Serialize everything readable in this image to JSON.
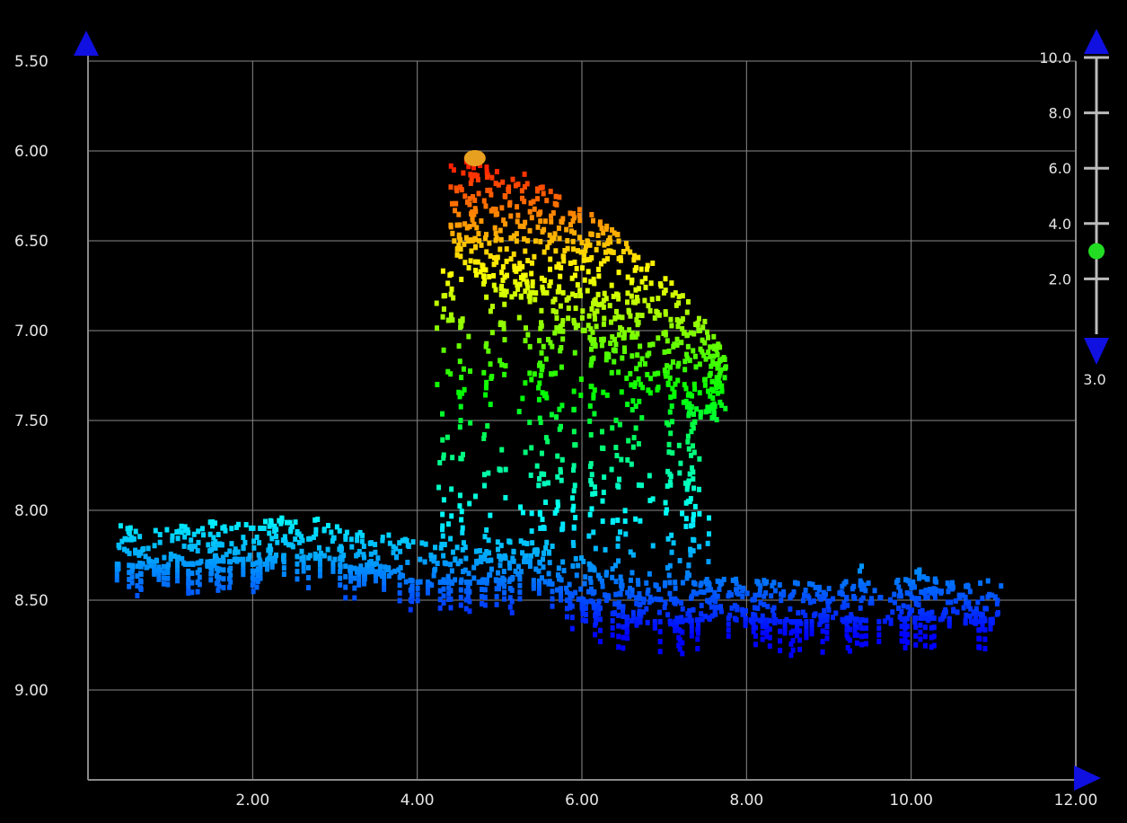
{
  "chart_data": {
    "type": "scatter",
    "title": "",
    "xlabel": "",
    "ylabel": "",
    "xlim": [
      0,
      12
    ],
    "ylim": [
      5.5,
      9.5
    ],
    "y_inverted": true,
    "grid": true,
    "x_ticks": [
      "2.00",
      "4.00",
      "6.00",
      "8.00",
      "10.00",
      "12.00"
    ],
    "y_ticks": [
      "5.50",
      "6.00",
      "6.50",
      "7.00",
      "7.50",
      "8.00",
      "8.50",
      "9.00"
    ],
    "colormap": "rainbow (red = shallow/high, blue = deep/low)",
    "series": [
      {
        "description": "seabed profile",
        "points": [
          [
            0.35,
            8.2
          ],
          [
            0.8,
            8.22
          ],
          [
            1.2,
            8.2
          ],
          [
            1.6,
            8.18
          ],
          [
            2.0,
            8.2
          ],
          [
            2.4,
            8.15
          ],
          [
            2.8,
            8.17
          ],
          [
            3.2,
            8.22
          ],
          [
            3.6,
            8.25
          ],
          [
            4.0,
            8.3
          ],
          [
            4.4,
            8.3
          ],
          [
            4.8,
            8.3
          ],
          [
            5.2,
            8.28
          ],
          [
            5.6,
            8.3
          ],
          [
            6.0,
            8.4
          ],
          [
            6.4,
            8.48
          ],
          [
            6.8,
            8.52
          ],
          [
            7.2,
            8.52
          ],
          [
            7.6,
            8.5
          ],
          [
            8.0,
            8.5
          ],
          [
            8.4,
            8.52
          ],
          [
            8.8,
            8.52
          ],
          [
            9.2,
            8.5
          ],
          [
            9.6,
            8.52
          ],
          [
            10.0,
            8.5
          ],
          [
            10.4,
            8.5
          ],
          [
            10.8,
            8.52
          ],
          [
            11.1,
            8.5
          ]
        ]
      },
      {
        "description": "object top surface",
        "points": [
          [
            4.4,
            6.05
          ],
          [
            4.8,
            6.05
          ],
          [
            5.2,
            6.1
          ],
          [
            5.6,
            6.2
          ],
          [
            6.0,
            6.3
          ],
          [
            6.4,
            6.45
          ],
          [
            6.8,
            6.6
          ],
          [
            7.2,
            6.75
          ],
          [
            7.5,
            6.95
          ],
          [
            7.75,
            7.15
          ]
        ]
      },
      {
        "description": "object bottom edge",
        "points": [
          [
            4.4,
            6.6
          ],
          [
            4.7,
            6.7
          ],
          [
            5.0,
            6.8
          ],
          [
            5.4,
            6.85
          ],
          [
            5.8,
            6.95
          ],
          [
            6.2,
            7.1
          ],
          [
            6.6,
            7.3
          ],
          [
            7.0,
            7.4
          ],
          [
            7.4,
            7.5
          ],
          [
            7.75,
            7.5
          ]
        ]
      }
    ],
    "highlight_point": {
      "x": 4.7,
      "y": 6.04,
      "color": "#e8a020"
    }
  },
  "depth_scale": {
    "ticks": [
      "10.0",
      "8.0",
      "6.0",
      "4.0",
      "2.0"
    ],
    "max": 10.0,
    "min": 0.0,
    "current_value": 3.0,
    "current_label": "3.0",
    "marker_color": "#22dd22",
    "arrow_color": "#1010e0"
  },
  "axis_arrows": {
    "y_up": "blue-triangle-up",
    "x_right": "blue-triangle-right"
  },
  "colors": {
    "background": "#000000",
    "grid": "#8a8a8a",
    "axis": "#8a8a8a",
    "text": "#e6e6e6"
  }
}
